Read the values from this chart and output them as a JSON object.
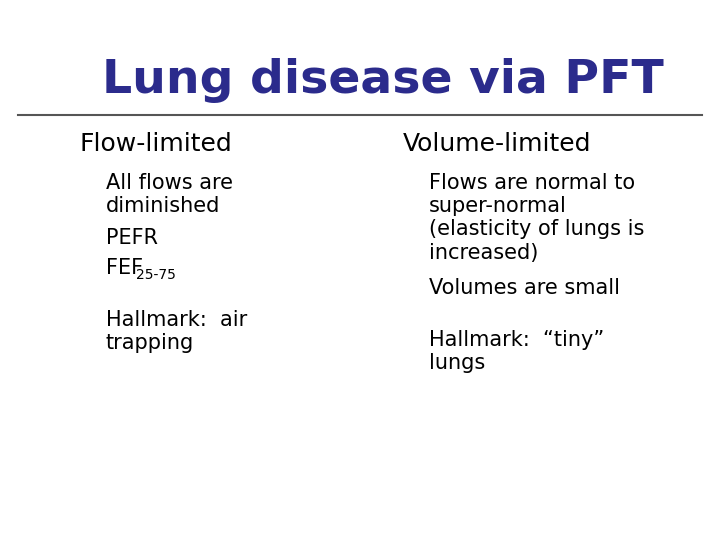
{
  "title": "Lung disease via PFT",
  "title_color": "#2B2B8C",
  "title_fontsize": 34,
  "background_color": "#FFFFFF",
  "header_line_color": "#555555",
  "bullet_blue": "#2B2B8C",
  "bullet_red": "#CC0000",
  "logo_yellow": "#FFD700",
  "logo_red": "#FF8080",
  "logo_blue": "#2B2B8C",
  "col1_header": "Flow-limited",
  "col2_header": "Volume-limited",
  "col1_items": [
    {
      "text": "All flows are\ndiminished",
      "subscript": null,
      "hallmark": false
    },
    {
      "text": "PEFR",
      "subscript": null,
      "hallmark": false
    },
    {
      "text": "FEF",
      "subscript": "25-75",
      "hallmark": false
    },
    {
      "text": "Hallmark:  air\ntrapping",
      "subscript": null,
      "hallmark": true
    }
  ],
  "col2_items": [
    {
      "text": "Flows are normal to\nsuper-normal\n(elasticity of lungs is\nincreased)",
      "subscript": null,
      "hallmark": false
    },
    {
      "text": "Volumes are small",
      "subscript": null,
      "hallmark": false
    },
    {
      "text": "Hallmark:  “tiny”\nlungs",
      "subscript": null,
      "hallmark": true
    }
  ]
}
